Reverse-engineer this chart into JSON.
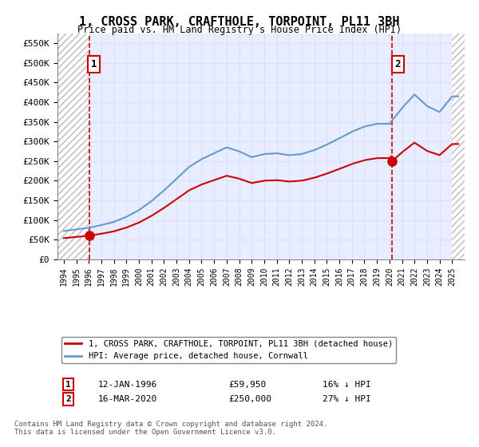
{
  "title": "1, CROSS PARK, CRAFTHOLE, TORPOINT, PL11 3BH",
  "subtitle": "Price paid vs. HM Land Registry's House Price Index (HPI)",
  "legend_line1": "1, CROSS PARK, CRAFTHOLE, TORPOINT, PL11 3BH (detached house)",
  "legend_line2": "HPI: Average price, detached house, Cornwall",
  "annotation1": {
    "label": "1",
    "date": "12-JAN-1996",
    "price": "£59,950",
    "pct": "16% ↓ HPI",
    "x_year": 1996.04
  },
  "annotation2": {
    "label": "2",
    "date": "16-MAR-2020",
    "price": "£250,000",
    "pct": "27% ↓ HPI",
    "x_year": 2020.21
  },
  "footer": "Contains HM Land Registry data © Crown copyright and database right 2024.\nThis data is licensed under the Open Government Licence v3.0.",
  "ylim": [
    0,
    575000
  ],
  "yticks": [
    0,
    50000,
    100000,
    150000,
    200000,
    250000,
    300000,
    350000,
    400000,
    450000,
    500000,
    550000
  ],
  "ytick_labels": [
    "£0",
    "£50K",
    "£100K",
    "£150K",
    "£200K",
    "£250K",
    "£300K",
    "£350K",
    "£400K",
    "£450K",
    "£500K",
    "£550K"
  ],
  "xlim": [
    1993.5,
    2026
  ],
  "xticks": [
    1994,
    1995,
    1996,
    1997,
    1998,
    1999,
    2000,
    2001,
    2002,
    2003,
    2004,
    2005,
    2006,
    2007,
    2008,
    2009,
    2010,
    2011,
    2012,
    2013,
    2014,
    2015,
    2016,
    2017,
    2018,
    2019,
    2020,
    2021,
    2022,
    2023,
    2024,
    2025
  ],
  "hpi_color": "#6699cc",
  "sale_color": "#cc0000",
  "hatch_color": "#cccccc",
  "grid_color": "#ddddff",
  "bg_color": "#e8eeff",
  "annotation_box_color": "#cc0000",
  "vline_color": "#cc0000",
  "dot_color": "#cc0000"
}
